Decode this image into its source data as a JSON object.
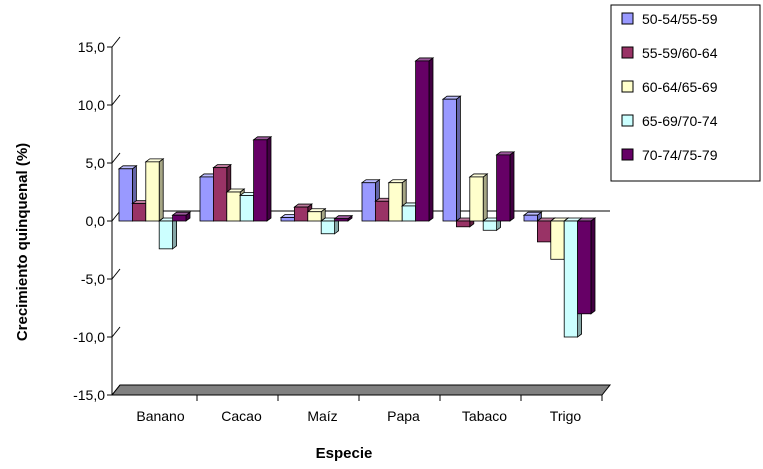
{
  "chart_data": {
    "type": "bar",
    "categories": [
      "Banano",
      "Cacao",
      "Maíz",
      "Papa",
      "Tabaco",
      "Trigo"
    ],
    "series": [
      {
        "name": "50-54/55-59",
        "color": "#9999ff",
        "values": [
          4.5,
          3.8,
          0.3,
          3.3,
          10.5,
          0.5
        ]
      },
      {
        "name": "55-59/60-64",
        "color": "#993366",
        "values": [
          1.5,
          4.6,
          1.2,
          1.7,
          -0.5,
          -1.8
        ]
      },
      {
        "name": "60-64/65-69",
        "color": "#ffffcc",
        "values": [
          5.1,
          2.5,
          0.8,
          3.3,
          3.8,
          -3.3
        ]
      },
      {
        "name": "65-69/70-74",
        "color": "#ccffff",
        "values": [
          -2.4,
          2.2,
          -1.1,
          1.3,
          -0.8,
          -10.0
        ]
      },
      {
        "name": "70-74/75-79",
        "color": "#660066",
        "values": [
          0.5,
          7.0,
          0.2,
          13.8,
          5.7,
          -8.0
        ]
      }
    ],
    "ylabel": "Crecimiento quinquenal (%)",
    "xlabel": "Especie",
    "ylim": [
      -15,
      15
    ],
    "yticks": [
      15,
      10,
      5,
      0,
      -5,
      -10,
      -15
    ],
    "ytick_labels": [
      "15,0",
      "10,0",
      "5,0",
      "0,0",
      "-5,0",
      "-10,0",
      "-15,0"
    ],
    "grid": false,
    "legend_position": "top-right",
    "floor_color": "#808080"
  }
}
